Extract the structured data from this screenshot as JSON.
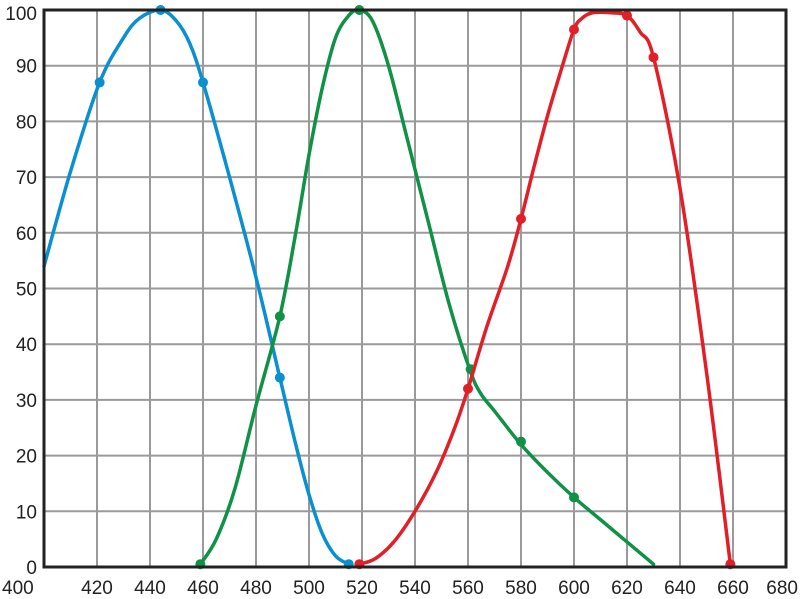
{
  "chart_data": {
    "type": "line",
    "title": "",
    "xlabel": "",
    "ylabel": "",
    "xlim": [
      400,
      680
    ],
    "ylim": [
      0,
      100
    ],
    "grid": true,
    "x_ticks": [
      "400",
      "420",
      "440",
      "460",
      "480",
      "500",
      "520",
      "540",
      "560",
      "580",
      "600",
      "620",
      "640",
      "660",
      "680"
    ],
    "y_ticks": [
      "0",
      "10",
      "20",
      "30",
      "40",
      "50",
      "60",
      "70",
      "80",
      "90",
      "100"
    ],
    "series": [
      {
        "color": "#0a8fd0",
        "curve": [
          [
            400,
            54
          ],
          [
            410,
            71
          ],
          [
            421,
            87
          ],
          [
            430,
            95
          ],
          [
            436,
            98.5
          ],
          [
            444,
            100
          ],
          [
            450,
            98
          ],
          [
            455,
            94
          ],
          [
            460,
            87
          ],
          [
            470,
            70
          ],
          [
            480,
            52
          ],
          [
            489,
            34
          ],
          [
            495,
            22
          ],
          [
            500,
            13
          ],
          [
            505,
            6
          ],
          [
            510,
            2
          ],
          [
            515,
            0.5
          ]
        ],
        "markers": [
          [
            421,
            87
          ],
          [
            444,
            100
          ],
          [
            460,
            87
          ],
          [
            489,
            34
          ],
          [
            515,
            0.5
          ]
        ]
      },
      {
        "color": "#0f9146",
        "curve": [
          [
            459,
            0.5
          ],
          [
            465,
            5
          ],
          [
            472,
            14
          ],
          [
            480,
            29
          ],
          [
            489,
            45
          ],
          [
            495,
            60
          ],
          [
            500,
            74
          ],
          [
            505,
            86
          ],
          [
            510,
            95
          ],
          [
            515,
            99
          ],
          [
            519,
            100
          ],
          [
            524,
            98
          ],
          [
            530,
            90
          ],
          [
            537,
            77
          ],
          [
            545,
            62
          ],
          [
            553,
            47
          ],
          [
            561,
            35
          ],
          [
            565,
            31
          ],
          [
            570,
            28
          ],
          [
            580,
            22
          ],
          [
            590,
            17
          ],
          [
            600,
            12.5
          ],
          [
            610,
            8.5
          ],
          [
            620,
            4.5
          ],
          [
            630,
            0.5
          ]
        ],
        "markers": [
          [
            459,
            0.5
          ],
          [
            489,
            45
          ],
          [
            519,
            100
          ],
          [
            561,
            35.5
          ],
          [
            580,
            22.5
          ],
          [
            600,
            12.5
          ]
        ]
      },
      {
        "color": "#e21f27",
        "curve": [
          [
            519,
            0.5
          ],
          [
            525,
            1.5
          ],
          [
            532,
            4.5
          ],
          [
            540,
            10
          ],
          [
            548,
            17
          ],
          [
            555,
            25
          ],
          [
            560,
            32
          ],
          [
            567,
            43
          ],
          [
            575,
            54
          ],
          [
            580,
            62.5
          ],
          [
            585,
            72
          ],
          [
            590,
            81
          ],
          [
            595,
            89
          ],
          [
            600,
            96.5
          ],
          [
            603,
            98.5
          ],
          [
            607,
            99.5
          ],
          [
            614,
            99.5
          ],
          [
            620,
            99
          ],
          [
            625,
            96
          ],
          [
            630,
            91.5
          ],
          [
            640,
            68
          ],
          [
            650,
            35
          ],
          [
            659,
            0.5
          ]
        ],
        "markers": [
          [
            519,
            0.5
          ],
          [
            560,
            32
          ],
          [
            580,
            62.5
          ],
          [
            600,
            96.5
          ],
          [
            620,
            99
          ],
          [
            630,
            91.5
          ],
          [
            659,
            0.5
          ]
        ]
      }
    ]
  }
}
